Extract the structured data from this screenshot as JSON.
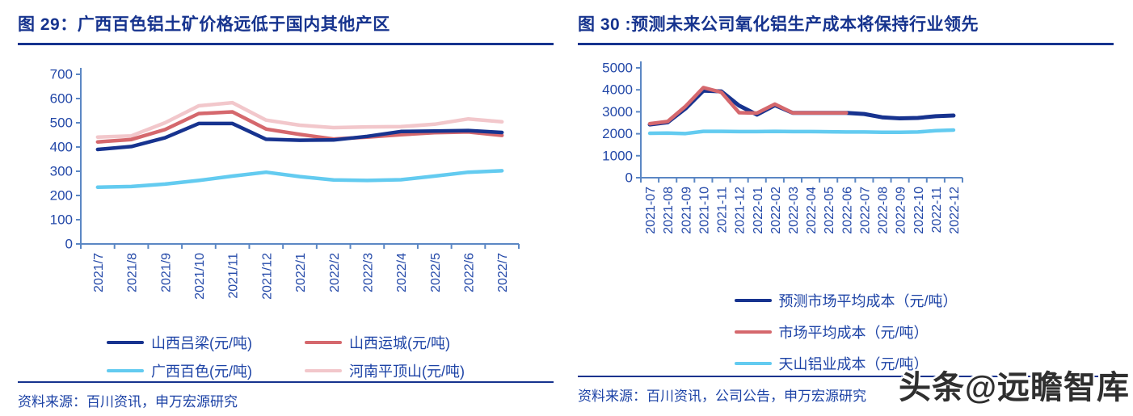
{
  "page": {
    "background": "#ffffff",
    "accent_navy": "#16338e",
    "axis_color": "#5b87c4",
    "tick_text_color": "#2348a8",
    "source_text_color": "#1d43a6",
    "watermark_color": "#2f2f2f"
  },
  "watermark": {
    "text": "头条@远瞻智库"
  },
  "figures": [
    {
      "title": "图 29：广西百色铝土矿价格远低于国内其他产区",
      "source": "资料来源：百川资讯，申万宏源研究"
    },
    {
      "title": "图 30 :预测未来公司氧化铝生产成本将保持行业领先",
      "source": "资料来源：百川资讯，公司公告，申万宏源研究"
    }
  ],
  "chart_data": [
    {
      "type": "line",
      "title": "广西百色铝土矿价格远低于国内其他产区",
      "xlabel": "",
      "ylabel": "",
      "ylim": [
        0,
        700
      ],
      "ytick_step": 100,
      "grid": false,
      "legend_position": "bottom",
      "categories": [
        "2021/7",
        "2021/8",
        "2021/9",
        "2021/10",
        "2021/11",
        "2021/12",
        "2022/1",
        "2022/2",
        "2022/3",
        "2022/4",
        "2022/5",
        "2022/6",
        "2022/7"
      ],
      "series": [
        {
          "name": "山西吕梁(元/吨)",
          "color": "#17338f",
          "width": 4.5,
          "z": 4,
          "values": [
            390,
            402,
            438,
            497,
            497,
            432,
            428,
            429,
            444,
            464,
            466,
            468,
            460
          ]
        },
        {
          "name": "山西运城(元/吨)",
          "color": "#d5686d",
          "width": 4.5,
          "z": 3,
          "values": [
            421,
            431,
            472,
            538,
            545,
            474,
            452,
            433,
            441,
            451,
            459,
            462,
            448
          ]
        },
        {
          "name": "广西百色(元/吨)",
          "color": "#63cbf0",
          "width": 4.5,
          "z": 2,
          "values": [
            234,
            237,
            247,
            262,
            280,
            296,
            278,
            264,
            262,
            265,
            280,
            296,
            302
          ]
        },
        {
          "name": "河南平顶山(元/吨)",
          "color": "#f2c7cb",
          "width": 4.5,
          "z": 1,
          "values": [
            441,
            446,
            500,
            570,
            583,
            511,
            490,
            480,
            483,
            484,
            494,
            516,
            504
          ]
        }
      ]
    },
    {
      "type": "line",
      "title": "预测未来公司氧化铝生产成本将保持行业领先",
      "xlabel": "",
      "ylabel": "",
      "ylim": [
        0,
        5000
      ],
      "ytick_step": 1000,
      "grid": false,
      "legend_position": "bottom",
      "categories": [
        "2021-07",
        "2021-08",
        "2021-09",
        "2021-10",
        "2021-11",
        "2021-12",
        "2022-01",
        "2022-02",
        "2022-03",
        "2022-04",
        "2022-05",
        "2022-06",
        "2022-07",
        "2022-08",
        "2022-09",
        "2022-10",
        "2022-11",
        "2022-12"
      ],
      "series": [
        {
          "name": "预测市场平均成本（元/吨）",
          "color": "#17338f",
          "width": 5,
          "z": 2,
          "values": [
            2420,
            2520,
            3150,
            3960,
            3930,
            3280,
            2870,
            3300,
            2950,
            2950,
            2950,
            2950,
            2900,
            2750,
            2700,
            2720,
            2800,
            2830
          ]
        },
        {
          "name": "市场平均成本（元/吨）",
          "color": "#d5686d",
          "width": 4.5,
          "z": 3,
          "values": [
            2460,
            2560,
            3250,
            4100,
            3890,
            2960,
            2940,
            3350,
            2950,
            2950,
            2950,
            2950,
            null,
            null,
            null,
            null,
            null,
            null
          ]
        },
        {
          "name": "天山铝业成本（元/吨）",
          "color": "#63cbf0",
          "width": 4.5,
          "z": 1,
          "values": [
            2020,
            2030,
            2010,
            2110,
            2110,
            2100,
            2100,
            2110,
            2100,
            2100,
            2090,
            2080,
            2080,
            2070,
            2070,
            2080,
            2140,
            2170
          ]
        }
      ]
    }
  ]
}
